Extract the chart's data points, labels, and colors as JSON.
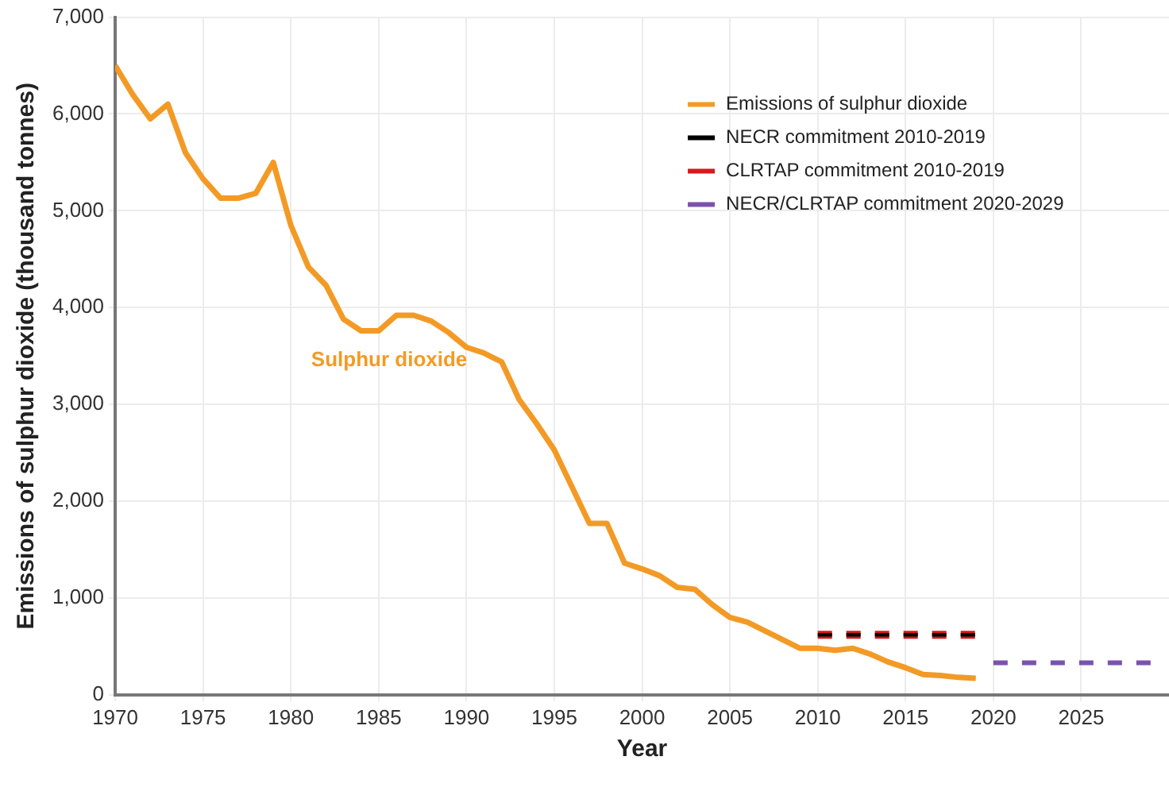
{
  "chart_data": {
    "type": "line",
    "xlabel": "Year",
    "ylabel": "Emissions of sulphur dioxide (thousand tonnes)",
    "x": [
      1970,
      1971,
      1972,
      1973,
      1974,
      1975,
      1976,
      1977,
      1978,
      1979,
      1980,
      1981,
      1982,
      1983,
      1984,
      1985,
      1986,
      1987,
      1988,
      1989,
      1990,
      1991,
      1992,
      1993,
      1994,
      1995,
      1996,
      1997,
      1998,
      1999,
      2000,
      2001,
      2002,
      2003,
      2004,
      2005,
      2006,
      2007,
      2008,
      2009,
      2010,
      2011,
      2012,
      2013,
      2014,
      2015,
      2016,
      2017,
      2018,
      2019
    ],
    "series": [
      {
        "name": "Emissions of sulphur dioxide",
        "color": "#f39a25",
        "line_style": "solid",
        "values": [
          6500,
          6200,
          5950,
          6100,
          5600,
          5330,
          5130,
          5130,
          5180,
          5500,
          4850,
          4420,
          4230,
          3880,
          3760,
          3760,
          3920,
          3920,
          3860,
          3740,
          3590,
          3530,
          3440,
          3050,
          2800,
          2530,
          2150,
          1770,
          1770,
          1360,
          1300,
          1230,
          1110,
          1090,
          930,
          800,
          750,
          660,
          570,
          480,
          480,
          460,
          480,
          420,
          340,
          280,
          210,
          200,
          180,
          170
        ]
      },
      {
        "name": "NECR commitment 2010-2019",
        "color": "#000000",
        "line_style": "dashed",
        "x": [
          2010,
          2019
        ],
        "values": [
          620,
          620
        ]
      },
      {
        "name": "CLRTAP commitment 2010-2019",
        "color": "#d7191c",
        "line_style": "dashed",
        "x": [
          2010,
          2019
        ],
        "values": [
          620,
          620
        ]
      },
      {
        "name": "NECR/CLRTAP commitment 2020-2029",
        "color": "#7b52ab",
        "line_style": "dashed",
        "x": [
          2020,
          2029
        ],
        "values": [
          330,
          330
        ]
      }
    ],
    "annotations": [
      "Sulphur dioxide"
    ],
    "xlim": [
      1970,
      2030
    ],
    "xticks": [
      1970,
      1975,
      1980,
      1985,
      1990,
      1995,
      2000,
      2005,
      2010,
      2015,
      2020,
      2025
    ],
    "ylim": [
      0,
      7000
    ],
    "yticks": [
      {
        "value": 0,
        "label": "0"
      },
      {
        "value": 1000,
        "label": "1,000"
      },
      {
        "value": 2000,
        "label": "2,000"
      },
      {
        "value": 3000,
        "label": "3,000"
      },
      {
        "value": 4000,
        "label": "4,000"
      },
      {
        "value": 5000,
        "label": "5,000"
      },
      {
        "value": 6000,
        "label": "6,000"
      },
      {
        "value": 7000,
        "label": "7,000"
      }
    ],
    "grid": true,
    "legend": "top right",
    "marker": "none"
  }
}
